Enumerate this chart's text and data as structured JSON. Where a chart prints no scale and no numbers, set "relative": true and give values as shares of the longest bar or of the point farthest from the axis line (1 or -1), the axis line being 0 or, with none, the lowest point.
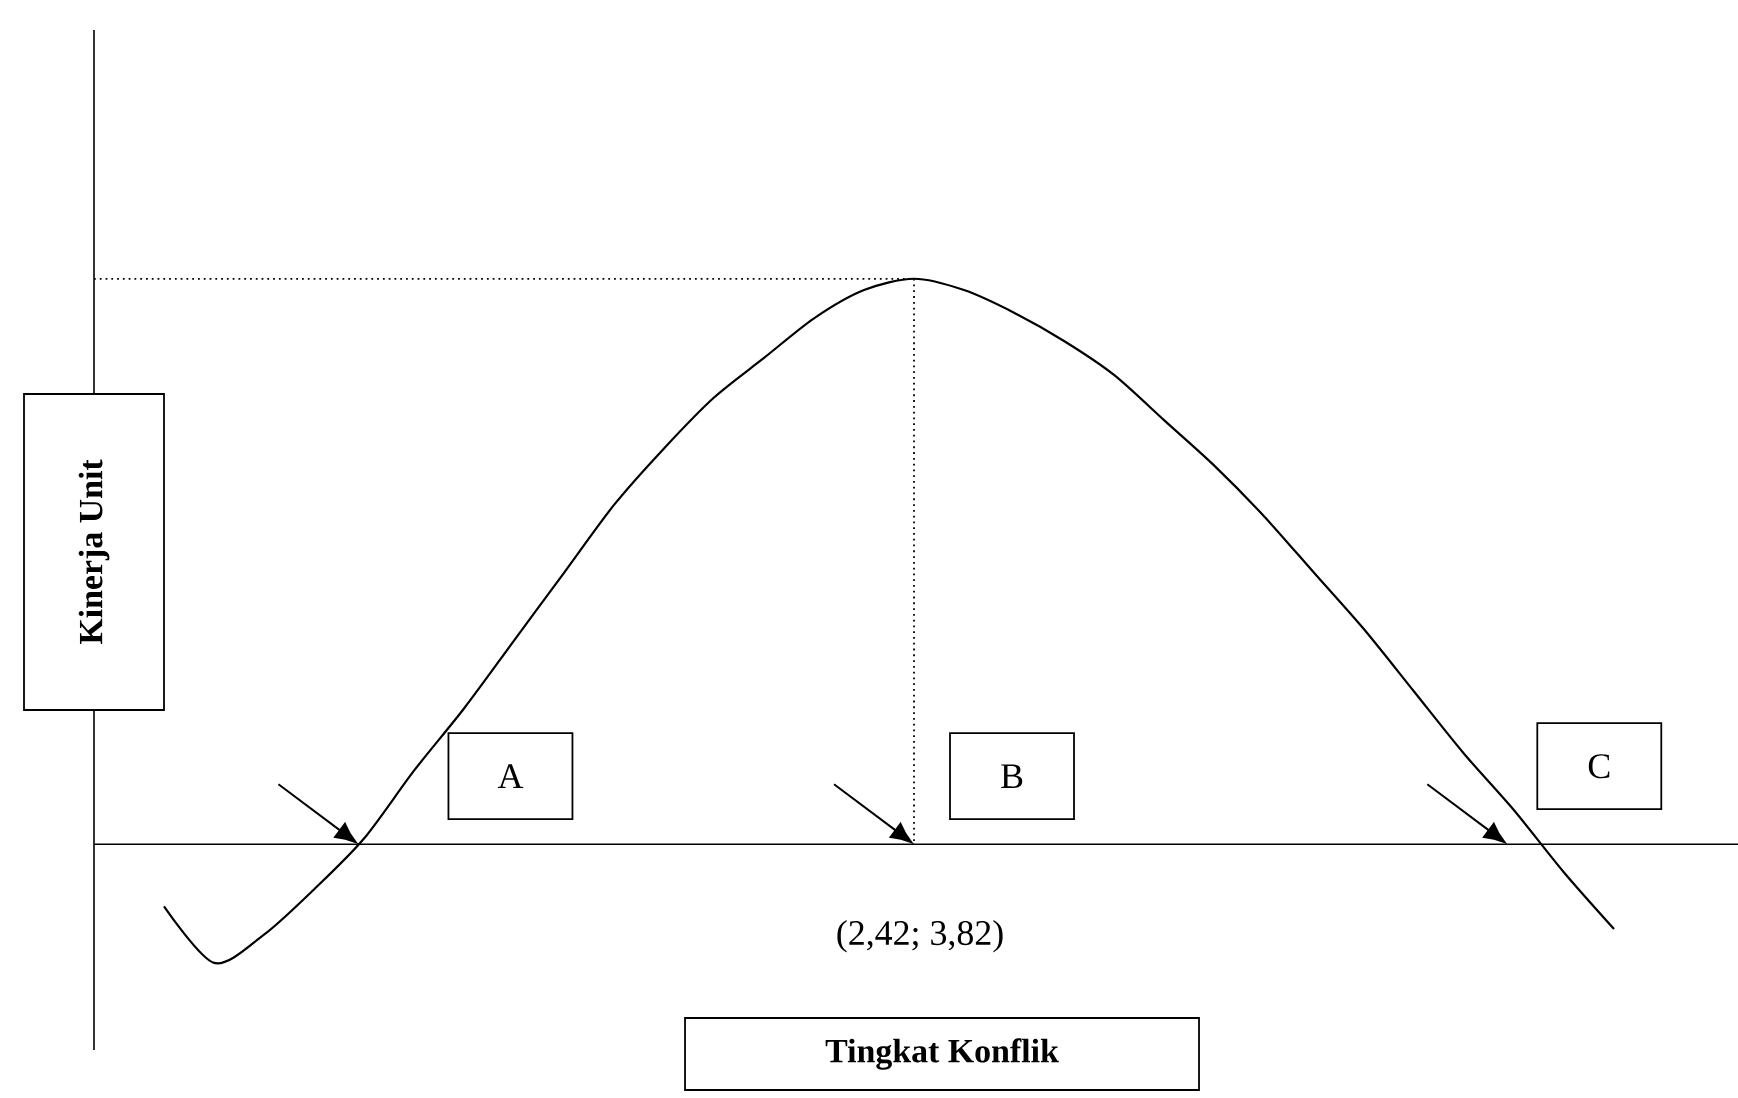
{
  "chart_data": {
    "type": "line",
    "xlabel": "Tingkat Konflik",
    "ylabel": "Kinerja Unit",
    "relative": true,
    "categories": [
      null,
      null,
      null,
      null,
      null,
      null,
      null,
      null,
      null,
      null,
      null,
      null,
      null,
      null,
      null,
      null,
      null,
      null,
      null,
      null,
      null,
      null,
      null,
      null,
      null,
      null,
      null,
      null,
      null,
      null
    ],
    "series": [
      {
        "color": "#000000",
        "values": [
          -0.11,
          -0.21,
          -0.16,
          -0.08,
          0.01,
          0.13,
          0.24,
          0.36,
          0.48,
          0.6,
          0.7,
          0.79,
          0.86,
          0.93,
          0.98,
          1,
          0.98,
          0.94,
          0.89,
          0.83,
          0.75,
          0.67,
          0.58,
          0.48,
          0.38,
          0.27,
          0.16,
          0.06,
          -0.05,
          -0.15
        ]
      }
    ],
    "ref_lines": [
      {
        "axis": "y",
        "value": 1,
        "line_style": "dotted",
        "color": "#000000"
      }
    ],
    "annotations": [
      "A",
      "B",
      "C",
      "(2,42; 3,82)"
    ]
  }
}
